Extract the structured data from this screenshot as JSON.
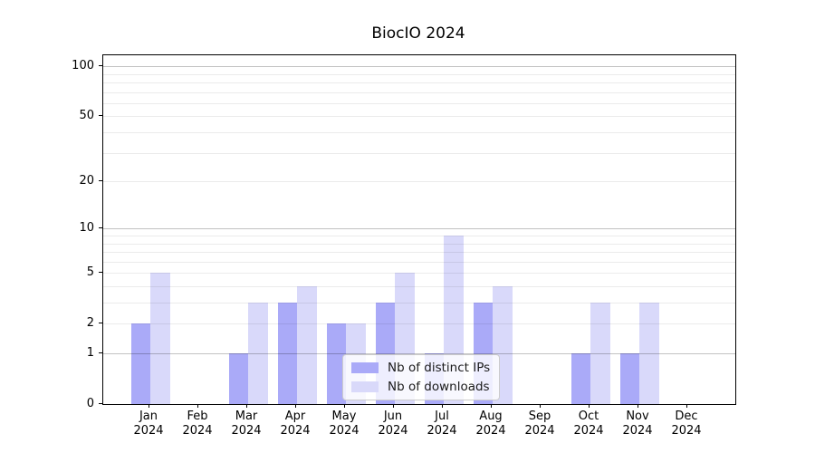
{
  "chart_data": {
    "type": "bar",
    "title": "BiocIO 2024",
    "categories": [
      "Jan",
      "Feb",
      "Mar",
      "Apr",
      "May",
      "Jun",
      "Jul",
      "Aug",
      "Sep",
      "Oct",
      "Nov",
      "Dec"
    ],
    "category_year": "2024",
    "series": [
      {
        "name": "Nb of distinct IPs",
        "color": "#aaaaf8",
        "values": [
          2,
          0,
          1,
          3,
          2,
          3,
          1,
          3,
          0,
          1,
          1,
          0
        ]
      },
      {
        "name": "Nb of downloads",
        "color": "#d9d9fa",
        "values": [
          5,
          0,
          3,
          4,
          2,
          5,
          9,
          4,
          0,
          3,
          3,
          0
        ]
      }
    ],
    "y_axis": {
      "scale": "log10(1+v)",
      "ticks": [
        100,
        50,
        20,
        10,
        5,
        2,
        1,
        0
      ],
      "range_max": 100
    },
    "gridlines": {
      "major": [
        1,
        10,
        100
      ],
      "minor": [
        2,
        3,
        4,
        5,
        6,
        7,
        8,
        9,
        20,
        30,
        40,
        50,
        60,
        70,
        80,
        90
      ]
    },
    "legend": {
      "position": "lower center"
    },
    "xlabel": "",
    "ylabel": ""
  }
}
